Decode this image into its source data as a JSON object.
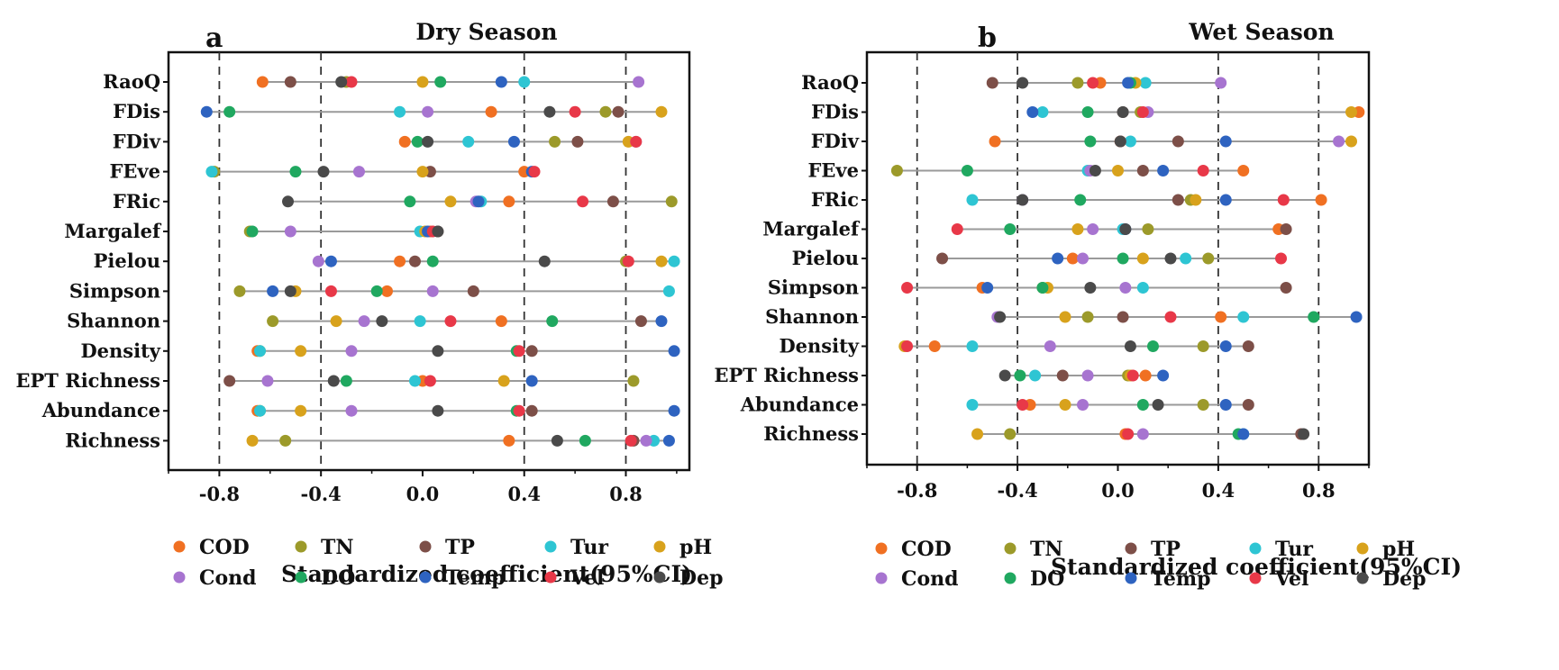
{
  "chart_data": [
    {
      "type": "scatter",
      "panel": "a",
      "title": "Dry Season",
      "xlabel": "Standardized coefficient(95%CI)",
      "xlim": [
        -1.0,
        1.05
      ],
      "xticks": [
        -0.8,
        -0.4,
        0.0,
        0.4,
        0.8
      ],
      "xtick_labels": [
        "-0.8",
        "-0.4",
        "0.0",
        "0.4",
        "0.8"
      ],
      "dashed_reference_lines": [
        -0.8,
        -0.4,
        0.4,
        0.8
      ],
      "categories": [
        "RaoQ",
        "FDis",
        "FDiv",
        "FEve",
        "FRic",
        "Margalef",
        "Pielou",
        "Simpson",
        "Shannon",
        "Density",
        "EPT Richness",
        "Abundance",
        "Richness"
      ],
      "series": [
        {
          "name": "COD",
          "values": [
            -0.63,
            0.27,
            -0.07,
            0.4,
            0.34,
            0.03,
            -0.09,
            -0.14,
            0.31,
            -0.65,
            0.0,
            -0.65,
            0.34
          ]
        },
        {
          "name": "TN",
          "values": [
            -0.3,
            0.72,
            0.52,
            -0.82,
            0.98,
            -0.68,
            0.8,
            -0.72,
            -0.59,
            -0.64,
            0.83,
            -0.64,
            -0.54
          ]
        },
        {
          "name": "TP",
          "values": [
            -0.52,
            0.77,
            0.61,
            0.03,
            0.75,
            0.06,
            -0.03,
            0.2,
            0.86,
            0.43,
            -0.76,
            0.43,
            0.83
          ]
        },
        {
          "name": "Tur",
          "values": [
            0.4,
            -0.09,
            0.18,
            -0.83,
            0.23,
            -0.01,
            0.99,
            0.97,
            -0.01,
            -0.64,
            -0.03,
            -0.64,
            0.91
          ]
        },
        {
          "name": "pH",
          "values": [
            0.0,
            0.94,
            0.81,
            0.0,
            0.11,
            0.01,
            0.94,
            -0.5,
            -0.34,
            -0.48,
            0.32,
            -0.48,
            -0.67
          ]
        },
        {
          "name": "Cond",
          "values": [
            0.85,
            0.02,
            0.84,
            -0.25,
            0.21,
            -0.52,
            -0.41,
            0.04,
            -0.23,
            -0.28,
            -0.61,
            -0.28,
            0.88
          ]
        },
        {
          "name": "DO",
          "values": [
            0.07,
            -0.76,
            -0.02,
            -0.5,
            -0.05,
            -0.67,
            0.04,
            -0.18,
            0.51,
            0.37,
            -0.3,
            0.37,
            0.64
          ]
        },
        {
          "name": "Temp",
          "values": [
            0.31,
            -0.85,
            0.36,
            0.43,
            0.22,
            0.02,
            -0.36,
            -0.59,
            0.94,
            0.99,
            0.43,
            0.99,
            0.97
          ]
        },
        {
          "name": "Vel",
          "values": [
            -0.28,
            0.6,
            0.84,
            0.44,
            0.63,
            0.04,
            0.81,
            -0.36,
            0.11,
            0.38,
            0.03,
            0.38,
            0.82
          ]
        },
        {
          "name": "Dep",
          "values": [
            -0.32,
            0.5,
            0.02,
            -0.39,
            -0.53,
            0.06,
            0.48,
            -0.52,
            -0.16,
            0.06,
            -0.35,
            0.06,
            0.53
          ]
        }
      ]
    },
    {
      "type": "scatter",
      "panel": "b",
      "title": "Wet Season",
      "xlabel": "Standardized coefficient(95%CI)",
      "xlim": [
        -1.0,
        1.0
      ],
      "xticks": [
        -0.8,
        -0.4,
        0.0,
        0.4,
        0.8
      ],
      "xtick_labels": [
        "-0.8",
        "-0.4",
        "0.0",
        "0.4",
        "0.8"
      ],
      "dashed_reference_lines": [
        -0.8,
        -0.4,
        0.4,
        0.8
      ],
      "categories": [
        "RaoQ",
        "FDis",
        "FDiv",
        "FEve",
        "FRic",
        "Margalef",
        "Pielou",
        "Simpson",
        "Shannon",
        "Density",
        "EPT Richness",
        "Abundance",
        "Richness"
      ],
      "series": [
        {
          "name": "COD",
          "values": [
            -0.07,
            0.96,
            -0.49,
            0.5,
            0.81,
            0.64,
            -0.18,
            -0.54,
            0.41,
            -0.73,
            0.11,
            -0.35,
            0.03
          ]
        },
        {
          "name": "TN",
          "values": [
            -0.16,
            0.09,
            0.01,
            -0.88,
            0.29,
            0.12,
            0.36,
            -0.3,
            -0.12,
            0.34,
            0.04,
            0.34,
            -0.43
          ]
        },
        {
          "name": "TP",
          "values": [
            -0.5,
            0.02,
            0.24,
            0.1,
            0.24,
            0.67,
            -0.7,
            0.67,
            0.02,
            0.52,
            -0.22,
            0.52,
            0.73
          ]
        },
        {
          "name": "Tur",
          "values": [
            0.11,
            -0.3,
            0.05,
            -0.12,
            -0.58,
            0.02,
            0.27,
            0.1,
            0.5,
            -0.58,
            -0.33,
            -0.58,
            0.5
          ]
        },
        {
          "name": "pH",
          "values": [
            0.07,
            0.93,
            0.93,
            0.0,
            0.31,
            -0.16,
            0.1,
            -0.28,
            -0.21,
            -0.85,
            0.05,
            -0.21,
            -0.56
          ]
        },
        {
          "name": "Cond",
          "values": [
            0.41,
            0.12,
            0.88,
            -0.11,
            -0.38,
            -0.1,
            -0.14,
            0.03,
            -0.48,
            -0.27,
            -0.12,
            -0.14,
            0.1
          ]
        },
        {
          "name": "DO",
          "values": [
            0.05,
            -0.12,
            -0.11,
            -0.6,
            -0.15,
            -0.43,
            0.02,
            -0.3,
            0.78,
            0.14,
            -0.39,
            0.1,
            0.48
          ]
        },
        {
          "name": "Temp",
          "values": [
            0.04,
            -0.34,
            0.43,
            0.18,
            0.43,
            0.03,
            -0.24,
            -0.52,
            0.95,
            0.43,
            0.18,
            0.43,
            0.5
          ]
        },
        {
          "name": "Vel",
          "values": [
            -0.1,
            0.1,
            0.01,
            0.34,
            0.66,
            -0.64,
            0.65,
            -0.84,
            0.21,
            -0.84,
            0.06,
            -0.38,
            0.04
          ]
        },
        {
          "name": "Dep",
          "values": [
            -0.38,
            0.02,
            0.01,
            -0.09,
            -0.38,
            0.03,
            0.21,
            -0.11,
            -0.47,
            0.05,
            -0.45,
            0.16,
            0.74
          ]
        }
      ]
    }
  ],
  "legend": [
    {
      "name": "COD",
      "color": "#f07022"
    },
    {
      "name": "TN",
      "color": "#9c9a2a"
    },
    {
      "name": "TP",
      "color": "#7d4f48"
    },
    {
      "name": "Tur",
      "color": "#2ec5d3"
    },
    {
      "name": "pH",
      "color": "#d8a21c"
    },
    {
      "name": "Cond",
      "color": "#a774d0"
    },
    {
      "name": "DO",
      "color": "#20a860"
    },
    {
      "name": "Temp",
      "color": "#2e63c0"
    },
    {
      "name": "Vel",
      "color": "#e83848"
    },
    {
      "name": "Dep",
      "color": "#4a4a4a"
    }
  ],
  "colors": {
    "axis": "#111111",
    "range_line": "#9a9a9a",
    "grid_dash": "#333333"
  }
}
